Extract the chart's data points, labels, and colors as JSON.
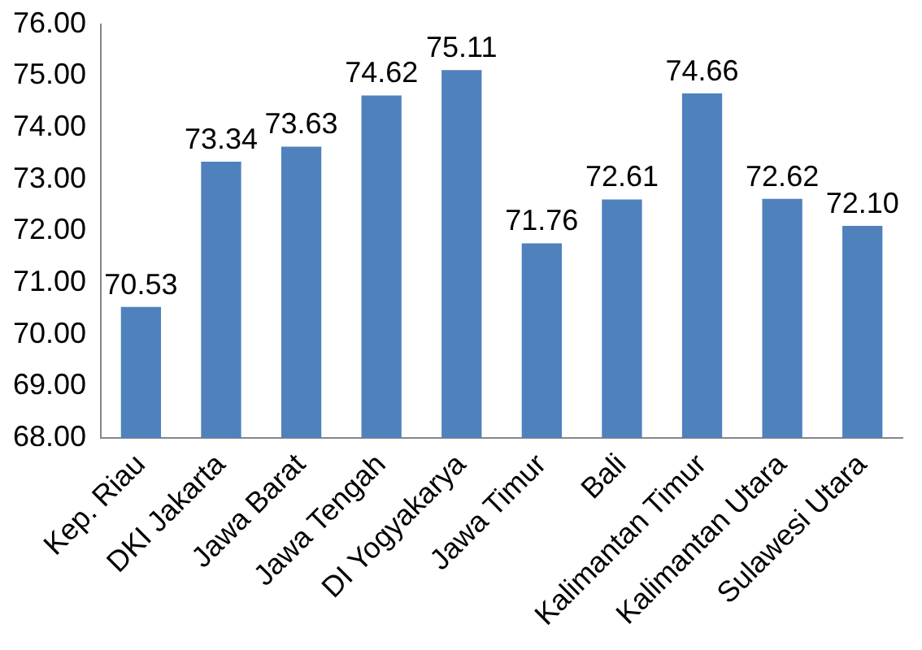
{
  "chart_data": {
    "type": "bar",
    "categories": [
      "Kep. Riau",
      "DKI Jakarta",
      "Jawa Barat",
      "Jawa Tengah",
      "DI Yogyakarya",
      "Jawa Timur",
      "Bali",
      "Kalimantan Timur",
      "Kalimantan Utara",
      "Sulawesi Utara"
    ],
    "values": [
      70.53,
      73.34,
      73.63,
      74.62,
      75.11,
      71.76,
      72.61,
      74.66,
      72.62,
      72.1
    ],
    "value_labels": [
      "70.53",
      "73.34",
      "73.63",
      "74.62",
      "75.11",
      "71.76",
      "72.61",
      "74.66",
      "72.62",
      "72.10"
    ],
    "color": "#4f81bd",
    "ylim": [
      68,
      76
    ],
    "yticks": [
      {
        "value": 68,
        "label": "68.00"
      },
      {
        "value": 69,
        "label": "69.00"
      },
      {
        "value": 70,
        "label": "70.00"
      },
      {
        "value": 71,
        "label": "71.00"
      },
      {
        "value": 72,
        "label": "72.00"
      },
      {
        "value": 73,
        "label": "73.00"
      },
      {
        "value": 74,
        "label": "74.00"
      },
      {
        "value": 75,
        "label": "75.00"
      },
      {
        "value": 76,
        "label": "76.00"
      }
    ],
    "grid": false,
    "legend": false
  }
}
